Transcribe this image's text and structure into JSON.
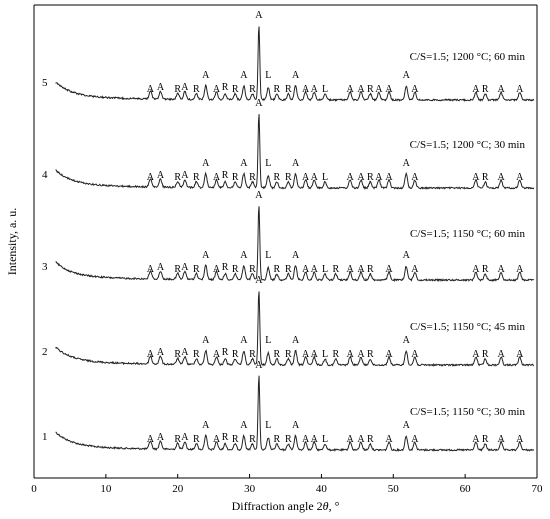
{
  "chart_data": {
    "type": "line",
    "xlabel_text": "Diffraction angle 2",
    "xlabel_theta": "θ",
    "xlabel_unit": ", °",
    "ylabel": "Intensity, a. u.",
    "xlim": [
      0,
      70
    ],
    "xticks": [
      0,
      10,
      20,
      30,
      40,
      50,
      60,
      70
    ],
    "series": [
      {
        "label_number": "1",
        "condition": "C/S=1.5; 1150 °C; 30 min",
        "peaks": [
          {
            "x": 16.2,
            "label": "A"
          },
          {
            "x": 17.6,
            "label": "A"
          },
          {
            "x": 20.0,
            "label": "R"
          },
          {
            "x": 21.0,
            "label": "A"
          },
          {
            "x": 22.6,
            "label": "R"
          },
          {
            "x": 23.9,
            "label": "A"
          },
          {
            "x": 25.4,
            "label": "A"
          },
          {
            "x": 26.6,
            "label": "R"
          },
          {
            "x": 28.0,
            "label": "R"
          },
          {
            "x": 29.2,
            "label": "A"
          },
          {
            "x": 30.4,
            "label": "R"
          },
          {
            "x": 31.3,
            "label": "A"
          },
          {
            "x": 32.6,
            "label": "L"
          },
          {
            "x": 33.8,
            "label": "R"
          },
          {
            "x": 35.4,
            "label": "R"
          },
          {
            "x": 36.4,
            "label": "A"
          },
          {
            "x": 37.8,
            "label": "A"
          },
          {
            "x": 39.0,
            "label": "A"
          },
          {
            "x": 40.5,
            "label": "L"
          },
          {
            "x": 44.0,
            "label": "A"
          },
          {
            "x": 45.5,
            "label": "A"
          },
          {
            "x": 46.8,
            "label": "R"
          },
          {
            "x": 49.4,
            "label": "A"
          },
          {
            "x": 51.8,
            "label": "A"
          },
          {
            "x": 53.0,
            "label": "A"
          },
          {
            "x": 61.5,
            "label": "A"
          },
          {
            "x": 62.8,
            "label": "R"
          },
          {
            "x": 65.0,
            "label": "A"
          },
          {
            "x": 67.6,
            "label": "A"
          }
        ]
      },
      {
        "label_number": "2",
        "condition": "C/S=1.5; 1150 °C; 45 min",
        "peaks": [
          {
            "x": 16.2,
            "label": "A"
          },
          {
            "x": 17.6,
            "label": "A"
          },
          {
            "x": 20.0,
            "label": "R"
          },
          {
            "x": 21.0,
            "label": "A"
          },
          {
            "x": 22.6,
            "label": "R"
          },
          {
            "x": 23.9,
            "label": "A"
          },
          {
            "x": 25.4,
            "label": "A"
          },
          {
            "x": 26.6,
            "label": "R"
          },
          {
            "x": 28.0,
            "label": "R"
          },
          {
            "x": 29.2,
            "label": "A"
          },
          {
            "x": 30.4,
            "label": "R"
          },
          {
            "x": 31.3,
            "label": "A"
          },
          {
            "x": 32.6,
            "label": "L"
          },
          {
            "x": 33.8,
            "label": "R"
          },
          {
            "x": 35.4,
            "label": "R"
          },
          {
            "x": 36.4,
            "label": "A"
          },
          {
            "x": 37.8,
            "label": "A"
          },
          {
            "x": 39.0,
            "label": "A"
          },
          {
            "x": 40.5,
            "label": "L"
          },
          {
            "x": 42.0,
            "label": "R"
          },
          {
            "x": 44.0,
            "label": "A"
          },
          {
            "x": 45.5,
            "label": "A"
          },
          {
            "x": 46.8,
            "label": "R"
          },
          {
            "x": 49.4,
            "label": "A"
          },
          {
            "x": 51.8,
            "label": "A"
          },
          {
            "x": 53.0,
            "label": "A"
          },
          {
            "x": 61.5,
            "label": "A"
          },
          {
            "x": 62.8,
            "label": "R"
          },
          {
            "x": 65.0,
            "label": "A"
          },
          {
            "x": 67.6,
            "label": "A"
          }
        ]
      },
      {
        "label_number": "3",
        "condition": "C/S=1.5; 1150 °C; 60 min",
        "peaks": [
          {
            "x": 16.2,
            "label": "A"
          },
          {
            "x": 17.6,
            "label": "A"
          },
          {
            "x": 20.0,
            "label": "R"
          },
          {
            "x": 21.0,
            "label": "A"
          },
          {
            "x": 22.6,
            "label": "R"
          },
          {
            "x": 23.9,
            "label": "A"
          },
          {
            "x": 25.4,
            "label": "A"
          },
          {
            "x": 26.6,
            "label": "R"
          },
          {
            "x": 28.0,
            "label": "R"
          },
          {
            "x": 29.2,
            "label": "A"
          },
          {
            "x": 30.4,
            "label": "R"
          },
          {
            "x": 31.3,
            "label": "A"
          },
          {
            "x": 32.6,
            "label": "L"
          },
          {
            "x": 33.8,
            "label": "R"
          },
          {
            "x": 35.4,
            "label": "R"
          },
          {
            "x": 36.4,
            "label": "A"
          },
          {
            "x": 37.8,
            "label": "A"
          },
          {
            "x": 39.0,
            "label": "A"
          },
          {
            "x": 40.5,
            "label": "L"
          },
          {
            "x": 42.0,
            "label": "R"
          },
          {
            "x": 44.0,
            "label": "A"
          },
          {
            "x": 45.5,
            "label": "A"
          },
          {
            "x": 46.8,
            "label": "R"
          },
          {
            "x": 49.4,
            "label": "A"
          },
          {
            "x": 51.8,
            "label": "A"
          },
          {
            "x": 53.0,
            "label": "A"
          },
          {
            "x": 61.5,
            "label": "A"
          },
          {
            "x": 62.8,
            "label": "R"
          },
          {
            "x": 65.0,
            "label": "A"
          },
          {
            "x": 67.6,
            "label": "A"
          }
        ]
      },
      {
        "label_number": "4",
        "condition": "C/S=1.5; 1200 °C; 30 min",
        "peaks": [
          {
            "x": 16.2,
            "label": "A"
          },
          {
            "x": 17.6,
            "label": "A"
          },
          {
            "x": 20.0,
            "label": "R"
          },
          {
            "x": 21.0,
            "label": "A"
          },
          {
            "x": 22.6,
            "label": "R"
          },
          {
            "x": 23.9,
            "label": "A"
          },
          {
            "x": 25.4,
            "label": "A"
          },
          {
            "x": 26.6,
            "label": "R"
          },
          {
            "x": 28.0,
            "label": "R"
          },
          {
            "x": 29.2,
            "label": "A"
          },
          {
            "x": 30.4,
            "label": "R"
          },
          {
            "x": 31.3,
            "label": "A"
          },
          {
            "x": 32.6,
            "label": "L"
          },
          {
            "x": 33.8,
            "label": "R"
          },
          {
            "x": 35.4,
            "label": "R"
          },
          {
            "x": 36.4,
            "label": "A"
          },
          {
            "x": 37.8,
            "label": "A"
          },
          {
            "x": 39.0,
            "label": "A"
          },
          {
            "x": 40.5,
            "label": "L"
          },
          {
            "x": 44.0,
            "label": "A"
          },
          {
            "x": 45.5,
            "label": "A"
          },
          {
            "x": 46.8,
            "label": "R"
          },
          {
            "x": 48.0,
            "label": "A"
          },
          {
            "x": 49.4,
            "label": "A"
          },
          {
            "x": 51.8,
            "label": "A"
          },
          {
            "x": 53.0,
            "label": "A"
          },
          {
            "x": 61.5,
            "label": "A"
          },
          {
            "x": 62.8,
            "label": "R"
          },
          {
            "x": 65.0,
            "label": "A"
          },
          {
            "x": 67.6,
            "label": "A"
          }
        ]
      },
      {
        "label_number": "5",
        "condition": "C/S=1.5; 1200 °C; 60 min",
        "peaks": [
          {
            "x": 16.2,
            "label": "A"
          },
          {
            "x": 17.6,
            "label": "A"
          },
          {
            "x": 20.0,
            "label": "R"
          },
          {
            "x": 21.0,
            "label": "A"
          },
          {
            "x": 22.6,
            "label": "R"
          },
          {
            "x": 23.9,
            "label": "A"
          },
          {
            "x": 25.4,
            "label": "A"
          },
          {
            "x": 26.6,
            "label": "R"
          },
          {
            "x": 28.0,
            "label": "R"
          },
          {
            "x": 29.2,
            "label": "A"
          },
          {
            "x": 30.4,
            "label": "R"
          },
          {
            "x": 31.3,
            "label": "A"
          },
          {
            "x": 32.6,
            "label": "L"
          },
          {
            "x": 33.8,
            "label": "R"
          },
          {
            "x": 35.4,
            "label": "R"
          },
          {
            "x": 36.4,
            "label": "A"
          },
          {
            "x": 37.8,
            "label": "A"
          },
          {
            "x": 39.0,
            "label": "A"
          },
          {
            "x": 40.5,
            "label": "L"
          },
          {
            "x": 44.0,
            "label": "A"
          },
          {
            "x": 45.5,
            "label": "A"
          },
          {
            "x": 46.8,
            "label": "R"
          },
          {
            "x": 48.0,
            "label": "A"
          },
          {
            "x": 49.4,
            "label": "A"
          },
          {
            "x": 51.8,
            "label": "A"
          },
          {
            "x": 53.0,
            "label": "A"
          },
          {
            "x": 61.5,
            "label": "A"
          },
          {
            "x": 62.8,
            "label": "R"
          },
          {
            "x": 65.0,
            "label": "A"
          },
          {
            "x": 67.6,
            "label": "A"
          }
        ]
      }
    ]
  }
}
